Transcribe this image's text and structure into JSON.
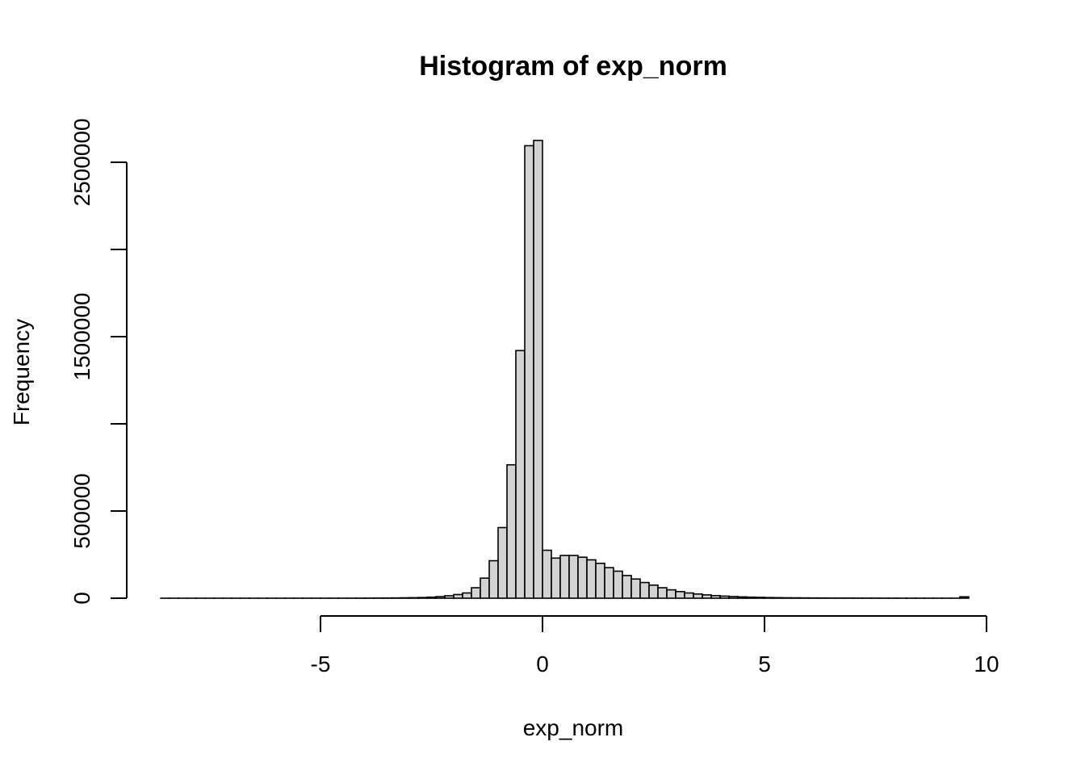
{
  "chart_data": {
    "type": "bar",
    "title": "Histogram of exp_norm",
    "xlabel": "exp_norm",
    "ylabel": "Frequency",
    "xlim": [
      -8.55,
      10.0
    ],
    "ylim": [
      0,
      2500000
    ],
    "x_ticks": [
      -5,
      0,
      5,
      10
    ],
    "x_tick_labels": [
      "-5",
      "0",
      "5",
      "10"
    ],
    "y_ticks": [
      0,
      500000,
      1000000,
      1500000,
      2000000,
      2500000
    ],
    "y_tick_labels": [
      "0",
      "500000",
      "",
      "1500000",
      "",
      "2500000"
    ],
    "bin_width": 0.2,
    "bins_start": -8.6,
    "values": [
      100,
      100,
      100,
      100,
      100,
      100,
      100,
      100,
      100,
      100,
      100,
      100,
      100,
      100,
      100,
      200,
      200,
      200,
      200,
      300,
      300,
      400,
      500,
      700,
      900,
      1200,
      1600,
      2200,
      3000,
      4000,
      6000,
      9000,
      14000,
      21000,
      30000,
      60000,
      115000,
      215000,
      405000,
      765000,
      1420000,
      2595000,
      2625000,
      275000,
      230000,
      245000,
      245000,
      235000,
      220000,
      200000,
      175000,
      155000,
      130000,
      110000,
      90000,
      75000,
      60000,
      48000,
      38000,
      30000,
      24000,
      19000,
      15000,
      12000,
      9500,
      7500,
      6000,
      4800,
      3800,
      3100,
      2500,
      2100,
      1800,
      1500,
      1300,
      1100,
      950,
      850,
      750,
      650,
      580,
      520,
      460,
      420,
      380,
      340,
      300,
      270,
      240,
      220,
      8000,
      0
    ],
    "grid": false,
    "legend": "none"
  }
}
